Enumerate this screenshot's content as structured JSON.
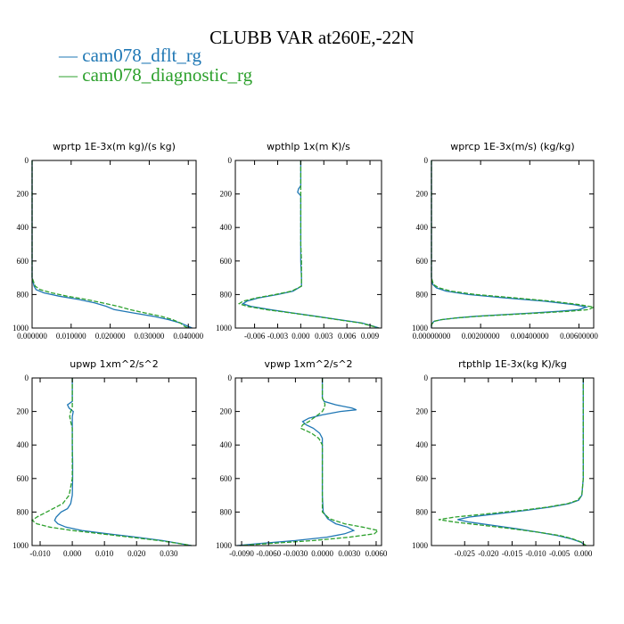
{
  "title": "CLUBB VAR at260E,-22N",
  "legend": [
    {
      "label": "cam078_dflt_rg",
      "color": "#1f77b4"
    },
    {
      "label": "cam078_diagnostic_rg",
      "color": "#2ca02c"
    }
  ],
  "chart_data": [
    {
      "type": "line",
      "title": "wprtp  1E-3x(m kg)/(s kg)",
      "xlim": [
        0,
        0.042
      ],
      "ylim": [
        1000,
        0
      ],
      "y_inverted": true,
      "xticks": [
        "0.000000",
        "0.010000",
        "0.020000",
        "0.030000",
        "0.040000"
      ],
      "xtick_values": [
        0,
        0.01,
        0.02,
        0.03,
        0.04
      ],
      "yticks": [
        "0",
        "200",
        "400",
        "600",
        "800",
        "1000"
      ],
      "ytick_values": [
        0,
        200,
        400,
        600,
        800,
        1000
      ],
      "series": [
        {
          "name": "cam078_dflt_rg",
          "y": [
            0,
            100,
            200,
            300,
            400,
            500,
            600,
            700,
            750,
            770,
            790,
            810,
            830,
            850,
            870,
            890,
            910,
            930,
            950,
            970,
            990,
            1000
          ],
          "x": [
            0,
            0,
            0,
            0,
            0,
            0,
            0,
            0,
            0.0005,
            0.001,
            0.003,
            0.007,
            0.012,
            0.016,
            0.019,
            0.021,
            0.026,
            0.031,
            0.035,
            0.038,
            0.04,
            0.041
          ]
        },
        {
          "name": "cam078_diagnostic_rg",
          "y": [
            0,
            100,
            200,
            300,
            400,
            500,
            600,
            700,
            750,
            770,
            790,
            810,
            830,
            850,
            870,
            890,
            910,
            930,
            950,
            970,
            990,
            1000
          ],
          "x": [
            0,
            0,
            0,
            0,
            0,
            0,
            0,
            0,
            0.0008,
            0.002,
            0.005,
            0.009,
            0.014,
            0.018,
            0.022,
            0.025,
            0.029,
            0.033,
            0.036,
            0.038,
            0.039,
            0.04
          ]
        }
      ]
    },
    {
      "type": "line",
      "title": "wpthlp  1x(m K)/s",
      "xlim": [
        -0.0085,
        0.0105
      ],
      "ylim": [
        1000,
        0
      ],
      "y_inverted": true,
      "xticks": [
        "-0.006",
        "-0.003",
        "0.000",
        "0.003",
        "0.006",
        "0.009"
      ],
      "xtick_values": [
        -0.006,
        -0.003,
        0,
        0.003,
        0.006,
        0.009
      ],
      "yticks": [
        "0",
        "200",
        "400",
        "600",
        "800",
        "1000"
      ],
      "ytick_values": [
        0,
        200,
        400,
        600,
        800,
        1000
      ],
      "series": [
        {
          "name": "cam078_dflt_rg",
          "y": [
            0,
            150,
            170,
            190,
            210,
            230,
            300,
            400,
            500,
            600,
            700,
            750,
            780,
            800,
            820,
            840,
            855,
            870,
            890,
            910,
            930,
            950,
            970,
            990,
            1000
          ],
          "x": [
            0,
            0,
            -0.0003,
            -0.0004,
            0,
            0,
            0,
            0,
            0,
            0,
            0.0001,
            0.0001,
            -0.001,
            -0.003,
            -0.0055,
            -0.007,
            -0.0075,
            -0.0065,
            -0.004,
            -0.001,
            0.002,
            0.005,
            0.008,
            0.0095,
            0.0102
          ]
        },
        {
          "name": "cam078_diagnostic_rg",
          "y": [
            0,
            150,
            170,
            190,
            210,
            230,
            300,
            400,
            500,
            600,
            700,
            750,
            780,
            800,
            820,
            840,
            855,
            870,
            890,
            910,
            930,
            950,
            970,
            990,
            1000
          ],
          "x": [
            0,
            0,
            0,
            0,
            0,
            0,
            0,
            0,
            0,
            0.0001,
            0.0001,
            0.0001,
            -0.0012,
            -0.0033,
            -0.0058,
            -0.0075,
            -0.008,
            -0.007,
            -0.0045,
            -0.0012,
            0.0018,
            0.0048,
            0.0078,
            0.0094,
            0.0101
          ]
        }
      ]
    },
    {
      "type": "line",
      "title": "wprcp  1E-3x(m/s) (kg/kg)",
      "xlim": [
        0,
        0.0066
      ],
      "ylim": [
        1000,
        0
      ],
      "y_inverted": true,
      "xticks": [
        "0.00000000",
        "0.00200000",
        "0.00400000",
        "0.00600000"
      ],
      "xtick_values": [
        0,
        0.002,
        0.004,
        0.006
      ],
      "yticks": [
        "0",
        "200",
        "400",
        "600",
        "800",
        "1000"
      ],
      "ytick_values": [
        0,
        200,
        400,
        600,
        800,
        1000
      ],
      "series": [
        {
          "name": "cam078_dflt_rg",
          "y": [
            0,
            200,
            400,
            600,
            700,
            740,
            760,
            780,
            800,
            820,
            840,
            860,
            875,
            890,
            900,
            910,
            920,
            930,
            940,
            950,
            960,
            980,
            1000
          ],
          "x": [
            0,
            0,
            0,
            0,
            0,
            5e-05,
            0.0002,
            0.0006,
            0.0015,
            0.003,
            0.0046,
            0.0058,
            0.0063,
            0.006,
            0.0052,
            0.0041,
            0.0029,
            0.0018,
            0.001,
            0.0004,
            0.0001,
            0,
            0
          ]
        },
        {
          "name": "cam078_diagnostic_rg",
          "y": [
            0,
            200,
            400,
            600,
            700,
            740,
            760,
            780,
            800,
            820,
            840,
            860,
            875,
            890,
            900,
            910,
            920,
            930,
            940,
            950,
            960,
            980,
            1000
          ],
          "x": [
            0,
            0,
            0,
            0,
            0,
            8e-05,
            0.0003,
            0.0008,
            0.0018,
            0.0034,
            0.0049,
            0.006,
            0.0066,
            0.0064,
            0.0056,
            0.0044,
            0.0031,
            0.0019,
            0.001,
            0.0004,
            0.0001,
            0,
            0
          ]
        }
      ]
    },
    {
      "type": "line",
      "title": "upwp  1xm^2/s^2",
      "xlim": [
        -0.0125,
        0.0385
      ],
      "ylim": [
        1000,
        0
      ],
      "y_inverted": true,
      "xticks": [
        "-0.010",
        "0.000",
        "0.010",
        "0.020",
        "0.030"
      ],
      "xtick_values": [
        -0.01,
        0,
        0.01,
        0.02,
        0.03
      ],
      "yticks": [
        "0",
        "200",
        "400",
        "600",
        "800",
        "1000"
      ],
      "ytick_values": [
        0,
        200,
        400,
        600,
        800,
        1000
      ],
      "series": [
        {
          "name": "cam078_dflt_rg",
          "y": [
            0,
            140,
            160,
            180,
            200,
            230,
            260,
            300,
            400,
            500,
            600,
            700,
            750,
            780,
            800,
            830,
            850,
            870,
            890,
            910,
            930,
            950,
            970,
            990,
            1000
          ],
          "x": [
            0,
            0,
            -0.0015,
            -0.001,
            0.0003,
            0,
            0,
            0,
            0,
            0.0001,
            0.0001,
            0,
            -0.0005,
            -0.0015,
            -0.0035,
            -0.005,
            -0.0055,
            -0.0045,
            -0.002,
            0.003,
            0.011,
            0.02,
            0.028,
            0.034,
            0.037
          ]
        },
        {
          "name": "cam078_diagnostic_rg",
          "y": [
            0,
            140,
            160,
            180,
            200,
            230,
            260,
            300,
            400,
            500,
            600,
            700,
            750,
            780,
            800,
            830,
            850,
            870,
            890,
            910,
            930,
            950,
            970,
            990,
            1000
          ],
          "x": [
            0,
            0,
            0,
            0,
            -0.0005,
            -0.0008,
            -0.0005,
            0,
            0,
            0,
            0,
            -0.001,
            -0.003,
            -0.006,
            -0.008,
            -0.011,
            -0.0125,
            -0.011,
            -0.007,
            0,
            0.009,
            0.018,
            0.027,
            0.034,
            0.037
          ]
        }
      ]
    },
    {
      "type": "line",
      "title": "vpwp  1xm^2/s^2",
      "xlim": [
        -0.0097,
        0.0066
      ],
      "ylim": [
        1000,
        0
      ],
      "y_inverted": true,
      "xticks": [
        "-0.0090",
        "-0.0060",
        "-0.0030",
        "0.0000",
        "0.0030",
        "0.0060"
      ],
      "xtick_values": [
        -0.009,
        -0.006,
        -0.003,
        0,
        0.003,
        0.006
      ],
      "yticks": [
        "0",
        "200",
        "400",
        "600",
        "800",
        "1000"
      ],
      "ytick_values": [
        0,
        200,
        400,
        600,
        800,
        1000
      ],
      "series": [
        {
          "name": "cam078_dflt_rg",
          "y": [
            0,
            120,
            140,
            160,
            180,
            190,
            200,
            220,
            240,
            260,
            280,
            300,
            330,
            360,
            400,
            500,
            600,
            700,
            800,
            840,
            870,
            890,
            910,
            930,
            950,
            970,
            990,
            1000
          ],
          "x": [
            0,
            0,
            0.0002,
            0.0015,
            0.0033,
            0.0038,
            0.002,
            0,
            -0.0015,
            -0.0022,
            -0.0018,
            -0.001,
            -0.0003,
            0,
            0,
            0,
            0,
            0,
            0.0001,
            0.0006,
            0.0015,
            0.0028,
            0.0035,
            0.0025,
            0.0005,
            -0.003,
            -0.0075,
            -0.0095
          ]
        },
        {
          "name": "cam078_diagnostic_rg",
          "y": [
            0,
            120,
            140,
            160,
            180,
            190,
            200,
            220,
            240,
            260,
            280,
            300,
            330,
            360,
            400,
            500,
            600,
            700,
            800,
            840,
            870,
            890,
            910,
            930,
            950,
            970,
            990,
            1000
          ],
          "x": [
            0,
            0,
            0.0002,
            0.0003,
            0.0002,
            0.0001,
            0,
            -0.0005,
            -0.001,
            -0.0015,
            -0.0022,
            -0.0024,
            -0.0012,
            -0.0004,
            0,
            0,
            0,
            0,
            0,
            0.0008,
            0.0025,
            0.0045,
            0.0062,
            0.0058,
            0.003,
            -0.001,
            -0.0065,
            -0.0092
          ]
        }
      ]
    },
    {
      "type": "line",
      "title": "rtpthlp  1E-3x(kg K)/kg",
      "xlim": [
        -0.032,
        0.0022
      ],
      "ylim": [
        1000,
        0
      ],
      "y_inverted": true,
      "xticks": [
        "-0.025",
        "-0.020",
        "-0.015",
        "-0.010",
        "-0.005",
        "0.000"
      ],
      "xtick_values": [
        -0.025,
        -0.02,
        -0.015,
        -0.01,
        -0.005,
        0
      ],
      "yticks": [
        "0",
        "200",
        "400",
        "600",
        "800",
        "1000"
      ],
      "ytick_values": [
        0,
        200,
        400,
        600,
        800,
        1000
      ],
      "series": [
        {
          "name": "cam078_dflt_rg",
          "y": [
            0,
            200,
            400,
            600,
            700,
            730,
            750,
            770,
            790,
            810,
            830,
            845,
            860,
            880,
            900,
            920,
            940,
            960,
            980,
            1000
          ],
          "x": [
            0,
            0,
            0,
            0,
            -0.0003,
            -0.001,
            -0.003,
            -0.007,
            -0.012,
            -0.018,
            -0.024,
            -0.0265,
            -0.024,
            -0.019,
            -0.014,
            -0.0095,
            -0.0055,
            -0.0025,
            -0.0005,
            0.0005
          ]
        },
        {
          "name": "cam078_diagnostic_rg",
          "y": [
            0,
            200,
            400,
            600,
            700,
            730,
            750,
            770,
            790,
            810,
            830,
            845,
            860,
            880,
            900,
            920,
            940,
            960,
            980,
            1000
          ],
          "x": [
            0,
            0,
            0,
            0,
            -0.0003,
            -0.0012,
            -0.0033,
            -0.0075,
            -0.013,
            -0.02,
            -0.027,
            -0.0305,
            -0.027,
            -0.021,
            -0.015,
            -0.0095,
            -0.005,
            -0.0022,
            -0.0004,
            0.0006
          ]
        }
      ]
    }
  ]
}
